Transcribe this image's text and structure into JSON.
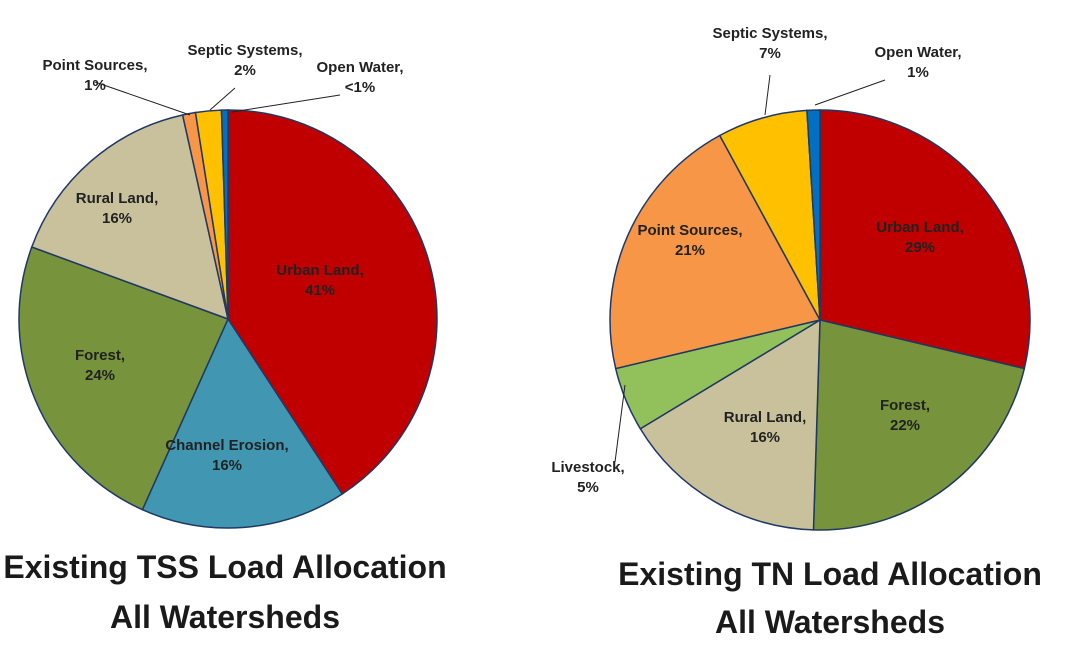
{
  "chart_data": [
    {
      "type": "pie",
      "title": [
        "Existing TSS Load Allocation",
        "All Watersheds"
      ],
      "categories": [
        "Urban Land",
        "Channel Erosion",
        "Forest",
        "Rural Land",
        "Point Sources",
        "Septic Systems",
        "Open Water"
      ],
      "values": [
        41,
        16,
        24,
        16,
        1,
        2,
        0.5
      ],
      "value_labels": [
        "41%",
        "16%",
        "24%",
        "16%",
        "1%",
        "2%",
        "<1%"
      ],
      "colors": [
        "#c00000",
        "#4197b2",
        "#77933c",
        "#c9c19c",
        "#f79646",
        "#ffc000",
        "#0070c0"
      ]
    },
    {
      "type": "pie",
      "title": [
        "Existing TN Load Allocation",
        "All Watersheds"
      ],
      "categories": [
        "Urban Land",
        "Forest",
        "Rural Land",
        "Livestock",
        "Point Sources",
        "Septic Systems",
        "Open Water"
      ],
      "values": [
        29,
        22,
        16,
        5,
        21,
        7,
        1
      ],
      "value_labels": [
        "29%",
        "22%",
        "16%",
        "5%",
        "21%",
        "7%",
        "1%"
      ],
      "colors": [
        "#c00000",
        "#77933c",
        "#c9c19c",
        "#92c05a",
        "#f79646",
        "#ffc000",
        "#0070c0"
      ]
    }
  ]
}
